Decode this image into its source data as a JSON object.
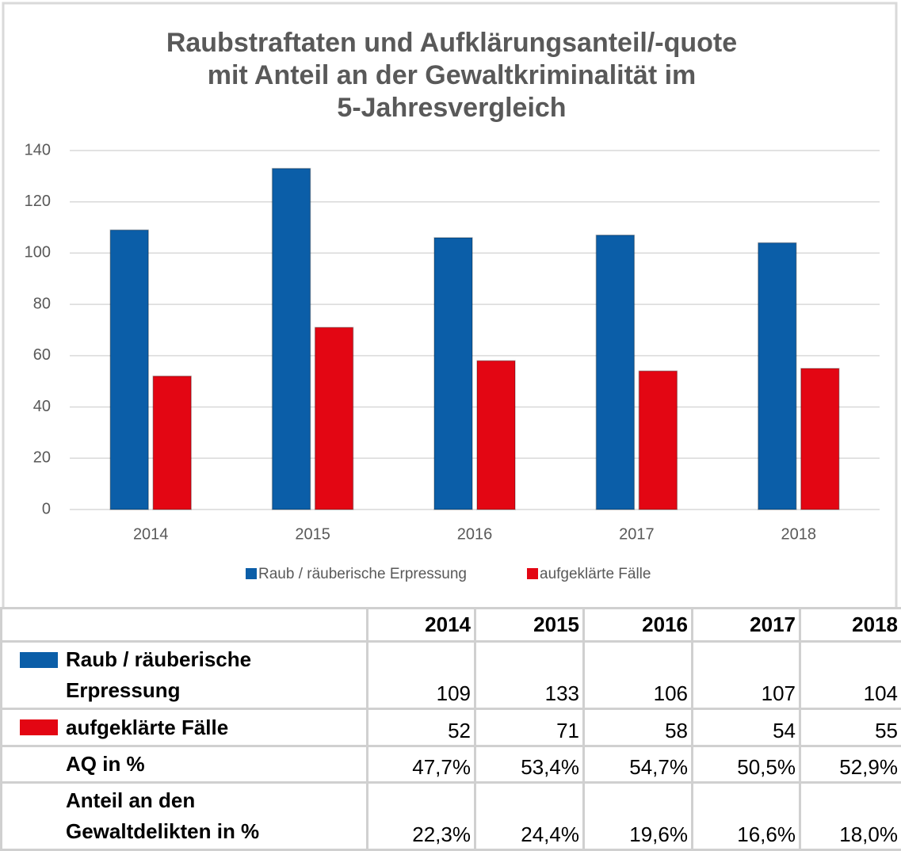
{
  "chart_data": {
    "type": "bar",
    "title": [
      "Raubstraftaten und Aufklärungsanteil/-quote",
      "mit Anteil an der Gewaltkriminalität im",
      "5-Jahresvergleich"
    ],
    "categories": [
      "2014",
      "2015",
      "2016",
      "2017",
      "2018"
    ],
    "series": [
      {
        "name": "Raub / räuberische Erpressung",
        "color": "#0b5ea8",
        "values": [
          109,
          133,
          106,
          107,
          104
        ]
      },
      {
        "name": "aufgeklärte Fälle",
        "color": "#e30613",
        "values": [
          52,
          71,
          58,
          54,
          55
        ]
      }
    ],
    "ylim": [
      0,
      140
    ],
    "yticks": [
      0,
      20,
      40,
      60,
      80,
      100,
      120,
      140
    ],
    "grid": true,
    "legend": "bottom"
  },
  "table": {
    "rows": [
      {
        "label": "AQ in %",
        "values": [
          "47,7%",
          "53,4%",
          "54,7%",
          "50,5%",
          "52,9%"
        ]
      },
      {
        "label": "Anteil an den Gewaltdelikten in %",
        "values": [
          "22,3%",
          "24,4%",
          "19,6%",
          "16,6%",
          "18,0%"
        ]
      }
    ]
  }
}
